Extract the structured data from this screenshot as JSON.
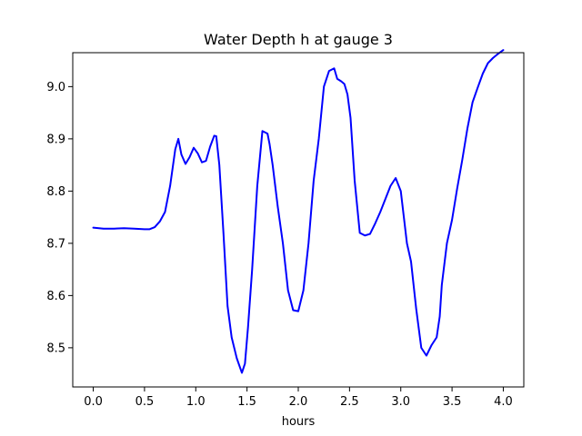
{
  "chart_data": {
    "type": "line",
    "title": "Water Depth h at gauge 3",
    "xlabel": "hours",
    "ylabel": "",
    "xlim": [
      -0.2,
      4.2
    ],
    "ylim": [
      8.425,
      9.065
    ],
    "xticks": [
      0.0,
      0.5,
      1.0,
      1.5,
      2.0,
      2.5,
      3.0,
      3.5,
      4.0
    ],
    "xtick_labels": [
      "0.0",
      "0.5",
      "1.0",
      "1.5",
      "2.0",
      "2.5",
      "3.0",
      "3.5",
      "4.0"
    ],
    "yticks": [
      8.5,
      8.6,
      8.7,
      8.8,
      8.9,
      9.0
    ],
    "ytick_labels": [
      "8.5",
      "8.6",
      "8.7",
      "8.8",
      "8.9",
      "9.0"
    ],
    "grid": false,
    "series": [
      {
        "color": "#0000ff",
        "x": [
          0.0,
          0.1,
          0.2,
          0.3,
          0.4,
          0.5,
          0.55,
          0.6,
          0.65,
          0.7,
          0.75,
          0.8,
          0.83,
          0.86,
          0.9,
          0.94,
          0.98,
          1.02,
          1.06,
          1.1,
          1.14,
          1.18,
          1.2,
          1.23,
          1.27,
          1.31,
          1.35,
          1.4,
          1.45,
          1.48,
          1.51,
          1.55,
          1.6,
          1.65,
          1.7,
          1.72,
          1.75,
          1.8,
          1.85,
          1.9,
          1.95,
          2.0,
          2.05,
          2.1,
          2.15,
          2.2,
          2.25,
          2.3,
          2.35,
          2.38,
          2.42,
          2.45,
          2.48,
          2.51,
          2.55,
          2.6,
          2.65,
          2.7,
          2.75,
          2.8,
          2.85,
          2.9,
          2.95,
          3.0,
          3.03,
          3.06,
          3.1,
          3.15,
          3.2,
          3.25,
          3.3,
          3.35,
          3.38,
          3.4,
          3.45,
          3.5,
          3.55,
          3.6,
          3.65,
          3.7,
          3.75,
          3.8,
          3.85,
          3.9,
          3.95,
          4.0
        ],
        "y": [
          8.73,
          8.728,
          8.728,
          8.729,
          8.728,
          8.727,
          8.727,
          8.731,
          8.742,
          8.76,
          8.81,
          8.88,
          8.9,
          8.87,
          8.852,
          8.865,
          8.883,
          8.872,
          8.855,
          8.858,
          8.885,
          8.906,
          8.905,
          8.85,
          8.72,
          8.58,
          8.52,
          8.48,
          8.452,
          8.47,
          8.54,
          8.65,
          8.81,
          8.915,
          8.91,
          8.89,
          8.85,
          8.77,
          8.7,
          8.61,
          8.572,
          8.57,
          8.61,
          8.7,
          8.82,
          8.9,
          9.0,
          9.03,
          9.035,
          9.015,
          9.01,
          9.005,
          8.985,
          8.94,
          8.82,
          8.72,
          8.715,
          8.718,
          8.738,
          8.76,
          8.785,
          8.81,
          8.825,
          8.8,
          8.75,
          8.7,
          8.665,
          8.575,
          8.5,
          8.485,
          8.505,
          8.52,
          8.56,
          8.62,
          8.7,
          8.745,
          8.805,
          8.86,
          8.92,
          8.97,
          8.998,
          9.025,
          9.045,
          9.055,
          9.063,
          9.07
        ]
      }
    ]
  }
}
